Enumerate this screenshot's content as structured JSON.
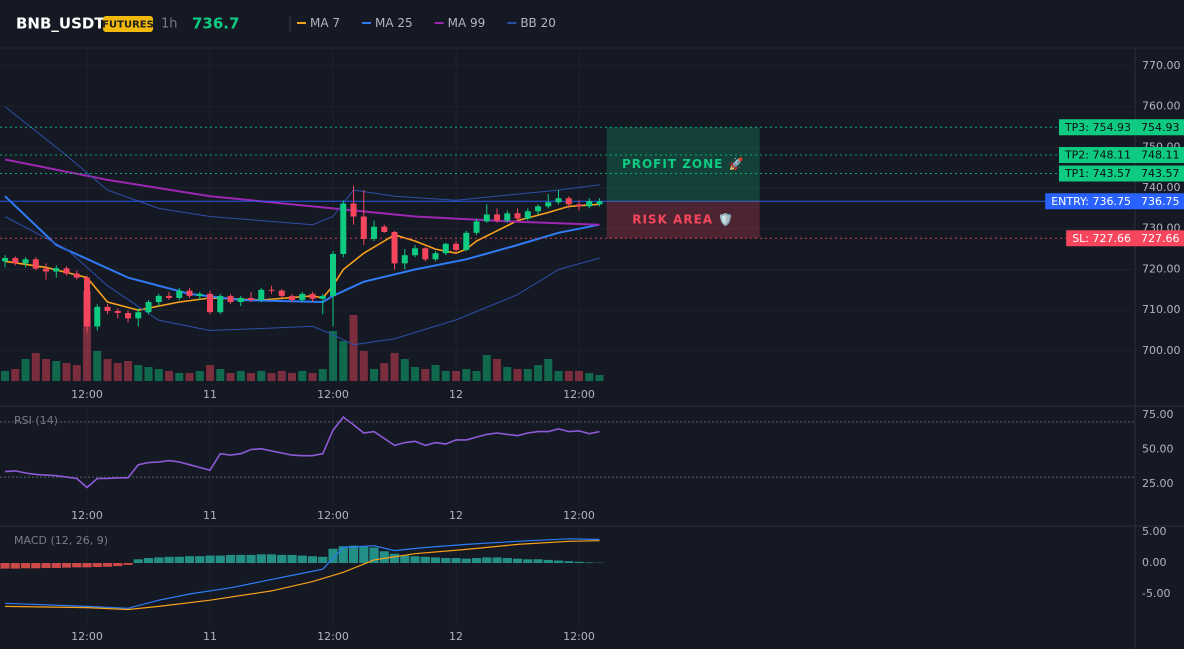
{
  "header": {
    "symbol": "BNB_USDT",
    "badge": "FUTURES",
    "interval": "1h",
    "price": 736.7
  },
  "chart_data": [
    {
      "type": "candlestick",
      "xlim": [
        -0.49,
        110.24
      ],
      "xticks": [
        {
          "value": 8,
          "label": "12:00"
        },
        {
          "value": 20,
          "label": "11"
        },
        {
          "value": 32,
          "label": "12:00"
        },
        {
          "value": 44,
          "label": "12"
        },
        {
          "value": 56,
          "label": "12:00"
        }
      ],
      "ylim": [
        692.6,
        774.4
      ],
      "yticks": [
        {
          "value": 700,
          "label": "700.00"
        },
        {
          "value": 710,
          "label": "710.00"
        },
        {
          "value": 720,
          "label": "720.00"
        },
        {
          "value": 730,
          "label": "730.00"
        },
        {
          "value": 740,
          "label": "740.00"
        },
        {
          "value": 750,
          "label": "750.00"
        },
        {
          "value": 760,
          "label": "760.00"
        },
        {
          "value": 770,
          "label": "770.00"
        }
      ],
      "up_color": "#0ecb81",
      "down_color": "#f6465d",
      "open": [
        722,
        722.8,
        721.5,
        722.5,
        720.2,
        719.5,
        720.3,
        719,
        718,
        706,
        710.8,
        709.8,
        709.3,
        708,
        709.5,
        712,
        713.5,
        713,
        714.8,
        713.5,
        714,
        709.5,
        713.5,
        712,
        713,
        712.5,
        715,
        714.8,
        713.5,
        712.5,
        714,
        712.8,
        713.5,
        723.8,
        736.2,
        733,
        727.5,
        730.5,
        729.2,
        721.5,
        723.5,
        725.2,
        722.5,
        724,
        726.3,
        724.8,
        729,
        731.8,
        733.5,
        732,
        733.8,
        732.5,
        734.3,
        735.5,
        736.5,
        737.5,
        736,
        735.5,
        736
      ],
      "high": [
        723.5,
        723.2,
        723,
        723,
        721.5,
        721,
        720.8,
        719.8,
        718.5,
        711.5,
        711.5,
        710.5,
        710,
        710.5,
        712.5,
        714,
        714.5,
        715.5,
        715.5,
        714.5,
        714.8,
        714,
        714,
        713.5,
        714.5,
        715.5,
        716,
        715.2,
        714,
        714.5,
        714.5,
        714,
        724.5,
        737,
        740.5,
        739.5,
        732,
        731,
        729.5,
        725,
        726,
        725.5,
        724.5,
        726.5,
        727,
        729.5,
        732.5,
        736,
        735,
        734.5,
        735,
        735,
        736,
        738.5,
        739.5,
        738,
        737,
        737.5,
        737.5
      ],
      "low": [
        720.5,
        721,
        720.5,
        719.8,
        717.5,
        718,
        718.5,
        717.5,
        704.5,
        705,
        709,
        708,
        707,
        706,
        709,
        711,
        712.5,
        712.5,
        713,
        712.5,
        709,
        709,
        711.5,
        711,
        712,
        712,
        714,
        713,
        712,
        712,
        712,
        709,
        706,
        723,
        731,
        726,
        727,
        729,
        720,
        720,
        723,
        722,
        722,
        723.5,
        724,
        724.5,
        728.5,
        731.5,
        731.5,
        731.5,
        732,
        732,
        733.5,
        735,
        736,
        735,
        734.5,
        735,
        735.5
      ],
      "close": [
        722.8,
        721.5,
        722.5,
        720.2,
        719.5,
        720.3,
        719,
        718,
        706,
        710.8,
        709.8,
        709.3,
        708,
        709.5,
        712,
        713.5,
        713,
        714.8,
        713.5,
        714,
        709.5,
        713.5,
        712,
        713,
        712.5,
        715,
        714.8,
        713.5,
        712.5,
        714,
        712.8,
        713.5,
        723.8,
        736.2,
        733,
        727.5,
        730.5,
        729.2,
        721.5,
        723.5,
        725.2,
        722.5,
        724,
        726.3,
        724.8,
        729,
        731.8,
        733.5,
        732,
        733.8,
        732.5,
        734.3,
        735.5,
        736.5,
        737.5,
        736,
        735.5,
        736.8,
        736.75
      ],
      "volume": [
        10,
        12,
        22,
        28,
        22,
        20,
        18,
        16,
        90,
        30,
        22,
        18,
        20,
        16,
        14,
        12,
        10,
        8,
        8,
        10,
        16,
        12,
        8,
        10,
        8,
        10,
        8,
        10,
        8,
        10,
        8,
        12,
        50,
        40,
        66,
        30,
        12,
        18,
        28,
        22,
        14,
        12,
        16,
        10,
        10,
        12,
        10,
        26,
        22,
        14,
        12,
        12,
        16,
        22,
        10,
        10,
        10,
        8,
        6
      ],
      "volume_lim": [
        0,
        100
      ],
      "series": [
        {
          "name": "MA 7",
          "color": "#f7a21b",
          "x": [
            0,
            4,
            8,
            10,
            13,
            17,
            20,
            25,
            30,
            31,
            32,
            33,
            35,
            37,
            38,
            40,
            42,
            44,
            45,
            46,
            48,
            50,
            53,
            55,
            58
          ],
          "values": [
            722,
            720.5,
            718,
            712,
            710,
            712,
            713,
            712.5,
            713.5,
            713,
            716,
            720,
            724,
            727,
            728.5,
            727,
            725,
            724,
            725,
            727,
            729.5,
            732,
            734,
            735.5,
            736
          ]
        },
        {
          "name": "MA 25",
          "color": "#2f7cf6",
          "x": [
            0,
            5,
            12,
            18,
            23,
            31,
            32,
            35,
            40,
            45,
            50,
            54,
            58
          ],
          "values": [
            738,
            726,
            718,
            714,
            712.5,
            712,
            713.5,
            717,
            720,
            722.5,
            726,
            729,
            731
          ]
        },
        {
          "name": "MA 99",
          "color": "#9c27b0",
          "x": [
            0,
            10,
            20,
            30,
            40,
            50,
            58
          ],
          "values": [
            747,
            742,
            738,
            735.5,
            733,
            731.7,
            731
          ]
        },
        {
          "name": "BB 20",
          "color": "#2d4ea8",
          "x": [
            0,
            6,
            10,
            15,
            20,
            25,
            30,
            32,
            34,
            38,
            44,
            50,
            54,
            58
          ],
          "upper": [
            760,
            748,
            739.5,
            735,
            733,
            732,
            731,
            733,
            739.5,
            738,
            737,
            738.5,
            739.5,
            740.8
          ],
          "lower": [
            733,
            725,
            716,
            707.5,
            705,
            705.5,
            706,
            704,
            701.5,
            703,
            707.6,
            713.8,
            720,
            722.8
          ]
        }
      ],
      "levels": [
        {
          "label": "TP3: 754.93",
          "value": 754.93,
          "color": "#0ecb81"
        },
        {
          "label": "TP2: 748.11",
          "value": 748.11,
          "color": "#0ecb81"
        },
        {
          "label": "TP1: 743.57",
          "value": 743.57,
          "color": "#0ecb81"
        },
        {
          "label": "ENTRY: 736.75",
          "value": 736.75,
          "color": "#2962ff"
        },
        {
          "label": "SL: 727.66",
          "value": 727.66,
          "color": "#f6465d"
        }
      ],
      "zones": [
        "PROFIT ZONE 🚀",
        "RISK AREA 🛡️"
      ]
    },
    {
      "type": "line",
      "title": "RSI (14)",
      "color": "#8e5ad8",
      "ylim": [
        9.8,
        80.1
      ],
      "yticks": [
        {
          "value": 25,
          "label": "25.00"
        },
        {
          "value": 50,
          "label": "50.00"
        },
        {
          "value": 75,
          "label": "75.00"
        }
      ],
      "bounds": [
        70,
        30
      ],
      "values": [
        34,
        34.5,
        33,
        32,
        31.5,
        31,
        30,
        29,
        22.5,
        29,
        29,
        29.5,
        29.5,
        39,
        40.5,
        41,
        42,
        41,
        39,
        37,
        35,
        47,
        46,
        47,
        50,
        50.5,
        49,
        47.5,
        46,
        45.5,
        45.5,
        47,
        64,
        73.5,
        68,
        62,
        63,
        58,
        53,
        55,
        56,
        53,
        55,
        54,
        57,
        57,
        59,
        61,
        62,
        61,
        60,
        62,
        63,
        63,
        65,
        63,
        63.5,
        61.5,
        63
      ]
    },
    {
      "type": "macd",
      "title": "MACD (12, 26, 9)",
      "ylim": [
        -10,
        5.65
      ],
      "yticks": [
        {
          "value": -5,
          "label": "-5.00"
        },
        {
          "value": 0,
          "label": "0.00"
        },
        {
          "value": 5,
          "label": "5.00"
        }
      ],
      "histogram": [
        -0.9,
        -0.9,
        -0.85,
        -0.85,
        -0.8,
        -0.8,
        -0.75,
        -0.7,
        -0.7,
        -0.65,
        -0.6,
        -0.5,
        -0.3,
        0.6,
        0.8,
        0.9,
        1.0,
        1.0,
        1.1,
        1.1,
        1.2,
        1.2,
        1.3,
        1.3,
        1.3,
        1.4,
        1.4,
        1.3,
        1.3,
        1.2,
        1.1,
        1.0,
        2.3,
        2.7,
        2.8,
        2.7,
        2.5,
        1.9,
        1.5,
        1.2,
        1.1,
        1.0,
        0.9,
        0.8,
        0.8,
        0.7,
        0.8,
        0.9,
        0.9,
        0.8,
        0.7,
        0.6,
        0.6,
        0.5,
        0.4,
        0.3,
        0.2,
        0.1,
        0.05
      ],
      "pos_color": "#26a69a",
      "neg_color": "#ef5350",
      "lines": [
        {
          "color": "#2f7cf6",
          "x": [
            0,
            8,
            12,
            15,
            18,
            22,
            28,
            31,
            33,
            36,
            38,
            41,
            45,
            50,
            55,
            58
          ],
          "values": [
            -6.5,
            -7,
            -7.3,
            -6,
            -5,
            -4,
            -2,
            -1,
            2.5,
            2.8,
            2,
            2.5,
            3,
            3.5,
            3.9,
            3.8
          ]
        },
        {
          "color": "#f7a21b",
          "x": [
            0,
            8,
            12,
            15,
            20,
            26,
            30,
            33,
            36,
            40,
            45,
            50,
            55,
            58
          ],
          "values": [
            -7,
            -7.2,
            -7.5,
            -7,
            -6,
            -4.5,
            -3,
            -1.5,
            0.5,
            1.5,
            2.2,
            3,
            3.5,
            3.6
          ]
        }
      ]
    }
  ]
}
